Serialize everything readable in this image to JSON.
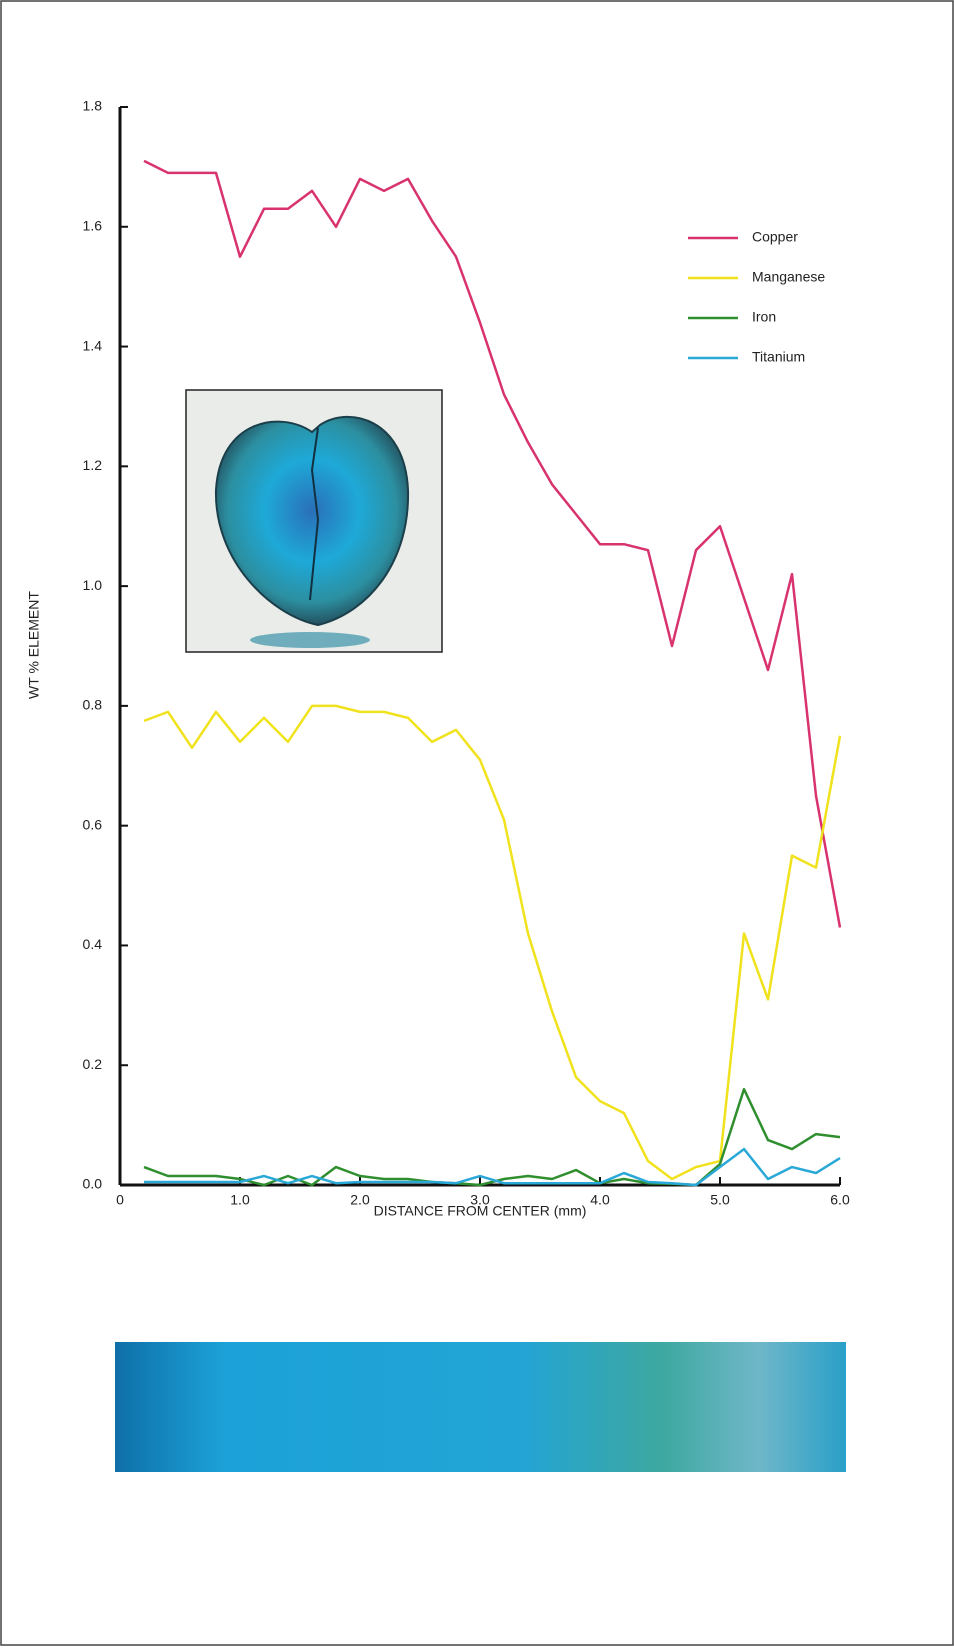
{
  "chart_data": {
    "type": "line",
    "xlabel": "DISTANCE FROM CENTER (mm)",
    "ylabel": "WT % ELEMENT",
    "x": [
      0.2,
      0.4,
      0.6,
      0.8,
      1.0,
      1.2,
      1.4,
      1.6,
      1.8,
      2.0,
      2.2,
      2.4,
      2.6,
      2.8,
      3.0,
      3.2,
      3.4,
      3.6,
      3.8,
      4.0,
      4.2,
      4.4,
      4.6,
      4.8,
      5.0,
      5.2,
      5.4,
      5.6,
      5.8,
      6.0
    ],
    "series": [
      {
        "name": "Copper",
        "color": "#d8336e",
        "values": [
          1.71,
          1.69,
          1.69,
          1.69,
          1.55,
          1.63,
          1.63,
          1.66,
          1.6,
          1.68,
          1.66,
          1.68,
          1.61,
          1.55,
          1.44,
          1.32,
          1.24,
          1.17,
          1.12,
          1.07,
          1.07,
          1.06,
          0.9,
          1.06,
          1.1,
          0.98,
          0.86,
          1.02,
          0.65,
          0.43
        ]
      },
      {
        "name": "Manganese",
        "color": "#f0e21c",
        "values": [
          0.775,
          0.79,
          0.73,
          0.79,
          0.74,
          0.78,
          0.74,
          0.8,
          0.8,
          0.79,
          0.79,
          0.78,
          0.74,
          0.76,
          0.71,
          0.61,
          0.42,
          0.29,
          0.18,
          0.14,
          0.12,
          0.04,
          0.01,
          0.03,
          0.04,
          0.42,
          0.31,
          0.55,
          0.53,
          0.75
        ]
      },
      {
        "name": "Iron",
        "color": "#2f8f2f",
        "values": [
          0.03,
          0.015,
          0.015,
          0.015,
          0.01,
          0.0,
          0.015,
          0.0,
          0.03,
          0.015,
          0.01,
          0.01,
          0.005,
          0.003,
          0.0,
          0.01,
          0.015,
          0.01,
          0.025,
          0.003,
          0.01,
          0.003,
          0.002,
          0.0,
          0.035,
          0.16,
          0.075,
          0.06,
          0.085,
          0.08
        ]
      },
      {
        "name": "Titanium",
        "color": "#2aa8d8",
        "values": [
          0.005,
          0.005,
          0.005,
          0.005,
          0.005,
          0.015,
          0.003,
          0.015,
          0.003,
          0.005,
          0.005,
          0.005,
          0.005,
          0.003,
          0.015,
          0.003,
          0.003,
          0.003,
          0.003,
          0.003,
          0.02,
          0.005,
          0.003,
          0.0,
          0.03,
          0.06,
          0.01,
          0.03,
          0.02,
          0.045
        ]
      }
    ],
    "xlim": [
      0,
      6
    ],
    "ylim": [
      0,
      1.8
    ],
    "xticks": [
      0,
      {
        "value": 1,
        "label": "1.0"
      },
      {
        "value": 2,
        "label": "2.0"
      },
      {
        "value": 3,
        "label": "3.0"
      },
      {
        "value": 4,
        "label": "4.0"
      },
      {
        "value": 5,
        "label": "5.0"
      },
      {
        "value": 6,
        "label": "6.0"
      }
    ],
    "yticks": [
      {
        "value": 0,
        "label": "0.0"
      },
      0.2,
      0.4,
      0.6,
      0.8,
      {
        "value": 1,
        "label": "1.0"
      },
      1.2,
      1.4,
      1.6,
      1.8
    ],
    "legend": "upper right"
  }
}
